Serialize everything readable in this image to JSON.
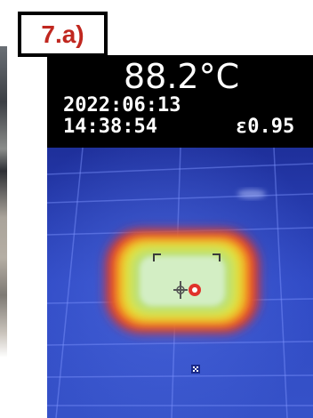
{
  "figure_label": "7.a)",
  "camera_display": {
    "temperature": "88.2°C",
    "date": "2022:06:13",
    "time": "14:38:54",
    "emissivity": "ε0.95"
  },
  "colors": {
    "label_text": "#c0271f",
    "background_cold": "#2a3fb8",
    "hotspot_core": "#c9e8b0",
    "hotspot_edge": "#e83a2a",
    "marker": "#e0322a"
  },
  "icons": [
    "crosshair-icon",
    "target-marker-icon",
    "cursor-icon"
  ]
}
